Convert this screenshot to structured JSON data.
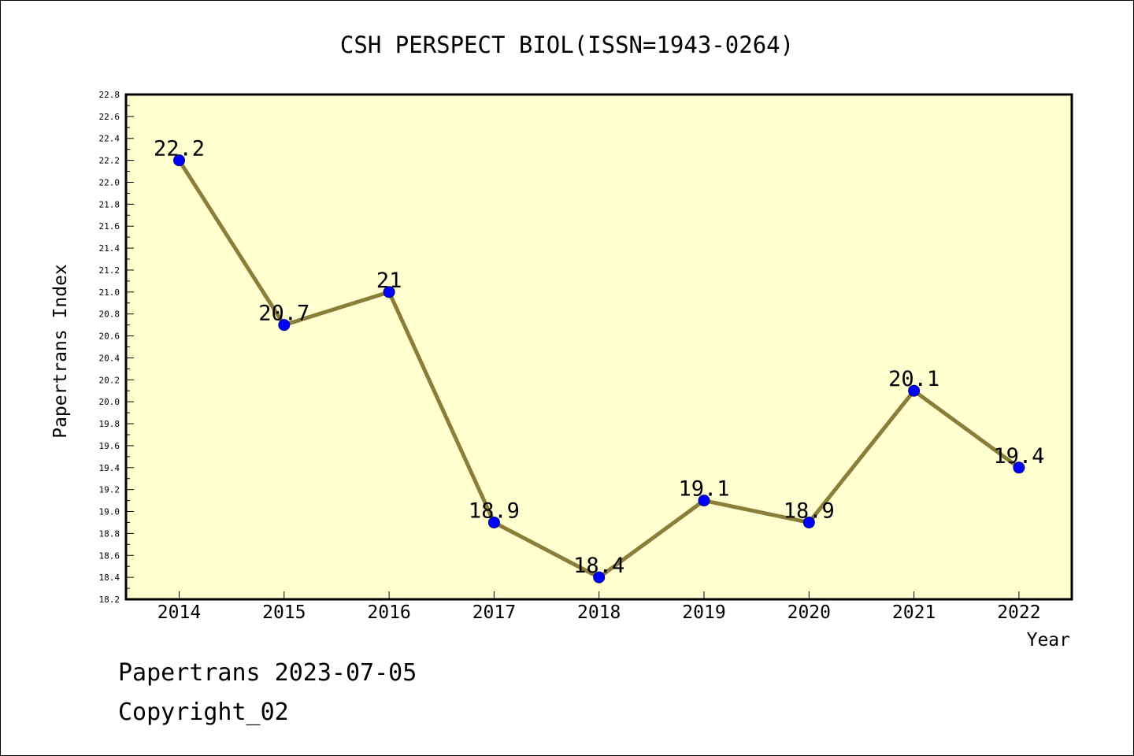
{
  "chart_data": {
    "type": "line",
    "title": "CSH PERSPECT BIOL(ISSN=1943-0264)",
    "xlabel": "Year",
    "ylabel": "Papertrans Index",
    "categories": [
      "2014",
      "2015",
      "2016",
      "2017",
      "2018",
      "2019",
      "2020",
      "2021",
      "2022"
    ],
    "values": [
      22.2,
      20.7,
      21,
      18.9,
      18.4,
      19.1,
      18.9,
      20.1,
      19.4
    ],
    "data_labels": [
      "22.2",
      "20.7",
      "21",
      "18.9",
      "18.4",
      "19.1",
      "18.9",
      "20.1",
      "19.4"
    ],
    "ylim": [
      18.2,
      22.8
    ],
    "ytick_step": 0.2,
    "yticks": [
      "18.2",
      "18.4",
      "18.6",
      "18.8",
      "19.0",
      "19.2",
      "19.4",
      "19.6",
      "19.8",
      "20.0",
      "20.2",
      "20.4",
      "20.6",
      "20.8",
      "21.0",
      "21.2",
      "21.4",
      "21.6",
      "21.8",
      "22.0",
      "22.2",
      "22.4",
      "22.6",
      "22.8"
    ],
    "grid": false,
    "colors": {
      "plot_background": "#ffffd0",
      "line": "#8b7d3a",
      "marker": "#0000ff"
    }
  },
  "footer": {
    "line1": "Papertrans 2023-07-05",
    "line2": "Copyright_02"
  }
}
